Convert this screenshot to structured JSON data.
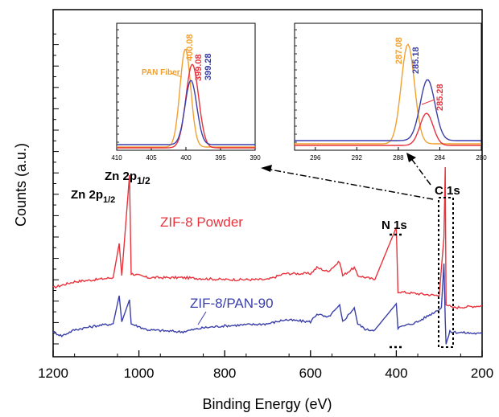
{
  "chart_data": [
    {
      "type": "line",
      "xlabel": "Binding Energy (eV)",
      "ylabel": "Counts (a.u.)",
      "xlim": [
        1200,
        200
      ],
      "x_reversed": true,
      "x_ticks": [
        1200,
        1000,
        800,
        600,
        400,
        200
      ],
      "x_tick_labels": [
        "1200",
        "1000",
        "800",
        "600",
        "400",
        "200"
      ],
      "y_tick_labels_shown": false,
      "colors": {
        "zif8_powder": "#e8323c",
        "zif8_pan90": "#3a3fa8",
        "pan_fiber": "#f0a030",
        "annotation": "#000000"
      },
      "series": [
        {
          "name": "ZIF-8 Powder",
          "color": "#e8323c",
          "points": [
            [
              1200,
              0.3
            ],
            [
              1150,
              0.33
            ],
            [
              1100,
              0.34
            ],
            [
              1060,
              0.35
            ],
            [
              1046,
              0.52
            ],
            [
              1040,
              0.36
            ],
            [
              1022,
              0.86
            ],
            [
              1018,
              0.37
            ],
            [
              980,
              0.35
            ],
            [
              900,
              0.35
            ],
            [
              800,
              0.34
            ],
            [
              700,
              0.34
            ],
            [
              660,
              0.37
            ],
            [
              600,
              0.37
            ],
            [
              585,
              0.4
            ],
            [
              560,
              0.38
            ],
            [
              532,
              0.43
            ],
            [
              525,
              0.36
            ],
            [
              498,
              0.4
            ],
            [
              490,
              0.36
            ],
            [
              470,
              0.35
            ],
            [
              450,
              0.34
            ],
            [
              400,
              0.6
            ],
            [
              396,
              0.28
            ],
            [
              350,
              0.27
            ],
            [
              300,
              0.26
            ],
            [
              289,
              0.55
            ],
            [
              286,
              0.9
            ],
            [
              284,
              0.22
            ],
            [
              270,
              0.2
            ],
            [
              200,
              0.21
            ]
          ]
        },
        {
          "name": "ZIF-8/PAN-90",
          "color": "#3a3fa8",
          "points": [
            [
              1200,
              0.08
            ],
            [
              1180,
              0.06
            ],
            [
              1150,
              0.09
            ],
            [
              1100,
              0.11
            ],
            [
              1060,
              0.12
            ],
            [
              1046,
              0.26
            ],
            [
              1040,
              0.13
            ],
            [
              1022,
              0.24
            ],
            [
              1018,
              0.12
            ],
            [
              980,
              0.09
            ],
            [
              900,
              0.08
            ],
            [
              850,
              0.1
            ],
            [
              800,
              0.11
            ],
            [
              700,
              0.12
            ],
            [
              660,
              0.14
            ],
            [
              600,
              0.13
            ],
            [
              585,
              0.17
            ],
            [
              560,
              0.15
            ],
            [
              532,
              0.21
            ],
            [
              525,
              0.13
            ],
            [
              498,
              0.2
            ],
            [
              490,
              0.12
            ],
            [
              470,
              0.09
            ],
            [
              450,
              0.09
            ],
            [
              400,
              0.22
            ],
            [
              396,
              0.1
            ],
            [
              350,
              0.13
            ],
            [
              310,
              0.18
            ],
            [
              295,
              0.2
            ],
            [
              289,
              0.42
            ],
            [
              286,
              0.14
            ],
            [
              284,
              0.02
            ],
            [
              275,
              0.08
            ],
            [
              200,
              0.07
            ]
          ]
        }
      ],
      "labels": {
        "zn_2p12": {
          "main": "Zn 2p",
          "sub": "1/2"
        },
        "zn_2p12_b": {
          "main": "Zn 2p",
          "sub": "1/2"
        },
        "n1s": "N 1s",
        "c1s": "C 1s",
        "powder": "ZIF-8 Powder",
        "pan90": "ZIF-8/PAN-90"
      }
    },
    {
      "type": "line",
      "inset": "N 1s",
      "xlim": [
        410,
        390
      ],
      "x_ticks": [
        410,
        405,
        400,
        395,
        390
      ],
      "x_tick_labels": [
        "410",
        "405",
        "400",
        "395",
        "390"
      ],
      "series": [
        {
          "name": "PAN Fiber",
          "color": "#f0a030",
          "peak": 400.08,
          "peak_label": "400.08"
        },
        {
          "name": "ZIF-8 Powder",
          "color": "#e8323c",
          "peak": 399.08,
          "peak_label": "399.08"
        },
        {
          "name": "ZIF-8/PAN-90",
          "color": "#3a3fa8",
          "peak": 399.28,
          "peak_label": "399.28"
        }
      ]
    },
    {
      "type": "line",
      "inset": "C 1s",
      "xlim": [
        298,
        280
      ],
      "x_ticks": [
        296,
        292,
        288,
        284,
        280
      ],
      "x_tick_labels": [
        "296",
        "292",
        "288",
        "284",
        "280"
      ],
      "series": [
        {
          "name": "PAN Fiber",
          "color": "#f0a030",
          "peak": 287.08,
          "peak_label": "287.08"
        },
        {
          "name": "ZIF-8/PAN-90",
          "color": "#3a3fa8",
          "peak": 285.18,
          "peak_label": "285.18"
        },
        {
          "name": "ZIF-8 Powder",
          "color": "#e8323c",
          "peak": 285.28,
          "peak_label": "285.28"
        }
      ]
    }
  ]
}
